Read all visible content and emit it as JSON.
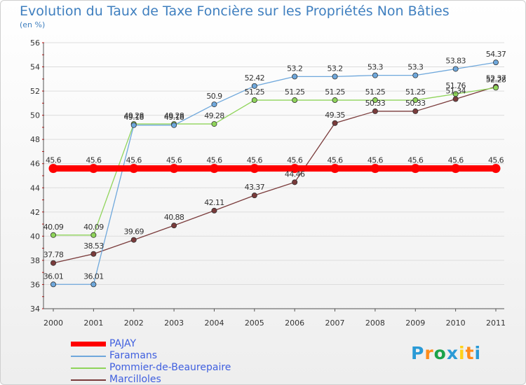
{
  "header": {
    "title": "Evolution du Taux de Taxe Foncière sur les Propriétés Non Bâties",
    "unit": "(en %)"
  },
  "brand": {
    "letters": [
      "P",
      "r",
      "o",
      "x",
      "i",
      "t",
      "i"
    ],
    "colors": [
      "#2a9ad6",
      "#ff8c1a",
      "#1aa34a",
      "#2a9ad6",
      "#ffd21a",
      "#ff8c1a",
      "#2a9ad6"
    ]
  },
  "chart_data": {
    "type": "line",
    "title": "Evolution du Taux de Taxe Foncière sur les Propriétés Non Bâties",
    "ylabel": "(en %)",
    "xlabel": "",
    "categories": [
      "2000",
      "2001",
      "2002",
      "2003",
      "2004",
      "2005",
      "2006",
      "2007",
      "2008",
      "2009",
      "2010",
      "2011"
    ],
    "ylim": [
      34,
      56
    ],
    "yticks": [
      34,
      36,
      38,
      40,
      42,
      44,
      46,
      48,
      50,
      52,
      54,
      56
    ],
    "grid": "horizontal",
    "legend_position": "bottom-left",
    "series": [
      {
        "name": "PAJAY",
        "color": "#ff0000",
        "values": [
          45.6,
          45.6,
          45.6,
          45.6,
          45.6,
          45.6,
          45.6,
          45.6,
          45.6,
          45.6,
          45.6,
          45.6
        ],
        "labels": [
          "45.6",
          "45.6",
          "45.6",
          "45.6",
          "45.6",
          "45.6",
          "45.6",
          "45.6",
          "45.6",
          "45.6",
          "45.6",
          "45.6"
        ]
      },
      {
        "name": "Faramans",
        "color": "#6fa8dc",
        "values": [
          36.01,
          36.01,
          49.18,
          49.18,
          50.9,
          52.42,
          53.2,
          53.2,
          53.3,
          53.3,
          53.83,
          54.37
        ],
        "labels": [
          "36.01",
          "36.01",
          "49.18",
          "49.18",
          "50.9",
          "52.42",
          "53.2",
          "53.2",
          "53.3",
          "53.3",
          "53.83",
          "54.37"
        ]
      },
      {
        "name": "Pommier-de-Beaurepaire",
        "color": "#8fd45a",
        "values": [
          40.09,
          40.09,
          49.28,
          49.28,
          49.28,
          51.25,
          51.25,
          51.25,
          51.25,
          51.25,
          51.76,
          52.28
        ],
        "labels": [
          "40.09",
          "40.09",
          "49.28",
          "49.28",
          "49.28",
          "51.25",
          "51.25",
          "51.25",
          "51.25",
          "51.25",
          "51.76",
          "52.28"
        ]
      },
      {
        "name": "Marcilloles",
        "color": "#7a3b3b",
        "values": [
          37.78,
          38.53,
          39.69,
          40.88,
          42.11,
          43.37,
          44.46,
          49.35,
          50.33,
          50.33,
          51.34,
          52.37
        ],
        "labels": [
          "37.78",
          "38.53",
          "39.69",
          "40.88",
          "42.11",
          "43.37",
          "44.46",
          "49.35",
          "50.33",
          "50.33",
          "51.34",
          "52.37"
        ]
      }
    ]
  }
}
